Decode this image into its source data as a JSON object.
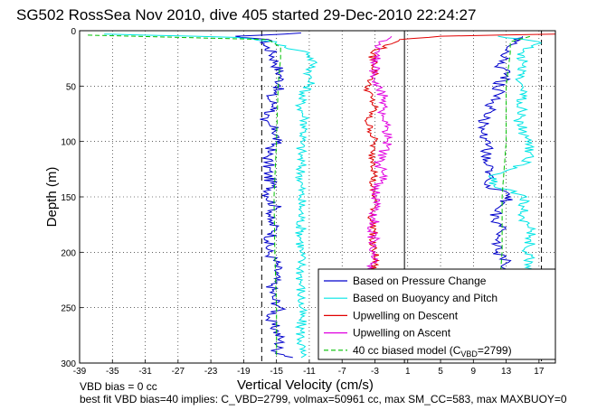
{
  "chart_data": {
    "type": "line",
    "title": "SG502 RossSea Nov 2010, dive 405 started 29-Dec-2010 22:24:27",
    "xlabel": "Vertical Velocity (cm/s)",
    "ylabel": "Depth (m)",
    "xlim": [
      -39,
      19
    ],
    "ylim": [
      300,
      0
    ],
    "y_reversed": true,
    "grid": true,
    "xticks": [
      -39,
      -35,
      -31,
      -27,
      -23,
      -19,
      -15,
      -11,
      -7,
      -3,
      1,
      5,
      9,
      13,
      17
    ],
    "yticks": [
      0,
      50,
      100,
      150,
      200,
      250,
      300
    ],
    "legend_position": "bottom-right",
    "legend": [
      {
        "label": "Based on Pressure Change",
        "color": "#0000cc",
        "style": "solid"
      },
      {
        "label": "Based on Buoyancy and Pitch",
        "color": "#00e5e5",
        "style": "solid"
      },
      {
        "label": "Upwelling on Descent",
        "color": "#e00000",
        "style": "solid"
      },
      {
        "label": "Upwelling on Ascent",
        "color": "#e000e0",
        "style": "solid"
      },
      {
        "label": "40 cc biased model (C",
        "sub": "VBD",
        "suffix": "=2799)",
        "color": "#00c000",
        "style": "dashed"
      }
    ],
    "reference_lines": [
      {
        "x": -16.8,
        "color": "#000000",
        "style": "dashed"
      },
      {
        "x": 0.6,
        "color": "#000000",
        "style": "solid"
      },
      {
        "x": 17.3,
        "color": "#000000",
        "style": "dashed"
      }
    ],
    "series": [
      {
        "name": "Based on Pressure Change",
        "color": "#0000cc",
        "descent": {
          "depth": [
            2,
            5,
            8,
            12,
            20,
            30,
            40,
            50,
            60,
            70,
            80,
            90,
            100,
            110,
            120,
            130,
            140,
            150,
            160,
            170,
            180,
            190,
            200,
            210,
            220,
            230,
            240,
            250,
            260,
            270,
            280,
            290,
            295
          ],
          "velocity": [
            -12,
            -20,
            -16,
            -16.5,
            -15.5,
            -15,
            -14.5,
            -14.5,
            -16,
            -15,
            -17,
            -15,
            -15,
            -16,
            -16,
            -16,
            -15.5,
            -16,
            -15,
            -16,
            -15,
            -16,
            -16,
            -15,
            -15,
            -15.5,
            -15.5,
            -14.5,
            -16,
            -15,
            -14.5,
            -15,
            -13
          ]
        },
        "ascent": {
          "depth": [
            296,
            290,
            280,
            270,
            260,
            250,
            240,
            230,
            220,
            210,
            200,
            190,
            180,
            170,
            160,
            150,
            140,
            130,
            120,
            110,
            100,
            90,
            80,
            70,
            60,
            50,
            40,
            30,
            20,
            10,
            5
          ],
          "velocity": [
            9,
            11.5,
            12,
            12,
            12.5,
            12,
            12,
            12.5,
            12,
            13,
            12,
            12,
            12.5,
            11.5,
            12,
            13.5,
            11,
            11,
            10.5,
            10.5,
            11,
            10,
            10.5,
            11,
            12,
            12,
            13,
            12,
            13,
            14,
            15
          ]
        }
      },
      {
        "name": "Based on Buoyancy and Pitch",
        "color": "#00e5e5",
        "descent": {
          "depth": [
            3,
            6,
            10,
            15,
            20,
            30,
            40,
            50,
            60,
            70,
            80,
            90,
            100,
            110,
            120,
            130,
            140,
            150,
            160,
            170,
            180,
            190,
            200,
            210,
            220,
            230,
            240,
            250,
            260,
            270,
            280,
            290,
            295
          ],
          "velocity": [
            -36,
            -20,
            -15,
            -14,
            -11,
            -10.5,
            -11,
            -11,
            -12,
            -12,
            -11.5,
            -11.5,
            -12,
            -12,
            -12,
            -12,
            -12,
            -12,
            -12,
            -12,
            -12,
            -12,
            -12,
            -12,
            -12,
            -12,
            -12,
            -12,
            -12,
            -12,
            -12,
            -12,
            -12
          ]
        },
        "ascent": {
          "depth": [
            296,
            290,
            280,
            270,
            260,
            250,
            240,
            230,
            220,
            210,
            200,
            190,
            180,
            170,
            160,
            150,
            140,
            130,
            120,
            110,
            100,
            90,
            80,
            70,
            60,
            50,
            40,
            30,
            20,
            10,
            5
          ],
          "velocity": [
            12,
            16,
            16,
            16,
            16,
            16,
            16,
            16,
            16,
            16,
            15.5,
            16,
            16,
            15,
            15,
            15.5,
            11.5,
            11.5,
            15.5,
            16,
            15.5,
            15,
            14.5,
            15,
            15,
            15,
            14.5,
            15,
            15,
            17,
            12
          ]
        }
      },
      {
        "name": "Upwelling on Descent",
        "color": "#e00000",
        "depth": [
          3,
          5,
          8,
          12,
          20,
          30,
          40,
          50,
          60,
          70,
          80,
          90,
          100,
          110,
          120,
          130,
          140,
          150,
          160,
          170,
          180,
          190,
          200,
          210,
          220,
          230,
          240,
          250,
          260,
          270,
          280,
          290
        ],
        "velocity": [
          19,
          5,
          0,
          -1,
          -3.5,
          -3,
          -3,
          -4,
          -3.5,
          -3,
          -4,
          -3.5,
          -3,
          -3.5,
          -3,
          -3,
          -3.5,
          -3,
          -3,
          -3.5,
          -3,
          -3.5,
          -3,
          -3,
          -3.5,
          -3,
          -3.5,
          -3,
          -3,
          -3,
          -3.5,
          -3.5
        ]
      },
      {
        "name": "Upwelling on Ascent",
        "color": "#e000e0",
        "depth": [
          294,
          290,
          280,
          270,
          260,
          250,
          240,
          230,
          220,
          210,
          200,
          190,
          180,
          170,
          160,
          150,
          140,
          130,
          120,
          110,
          100,
          90,
          80,
          70,
          60,
          50,
          40,
          30,
          20,
          10,
          5
        ],
        "velocity": [
          -4,
          -3,
          -3.5,
          -3,
          -3,
          -3,
          -3.5,
          -3,
          -3,
          -3.5,
          -3,
          -3,
          -3.5,
          -3,
          -3,
          -3,
          -2.5,
          -2,
          -2.5,
          -2,
          -1.5,
          -1.5,
          -2,
          -2,
          -2,
          -2.5,
          -3,
          -3,
          -3,
          -2.5,
          -1
        ]
      },
      {
        "name": "40 cc biased model",
        "color": "#00c000",
        "descent": {
          "depth": [
            4,
            8,
            15,
            25,
            50,
            100,
            150,
            200,
            250,
            295
          ],
          "velocity": [
            -38,
            -16,
            -14.5,
            -14.5,
            -14.8,
            -15,
            -15.3,
            -15.2,
            -15,
            -15
          ]
        },
        "ascent": {
          "depth": [
            295,
            250,
            200,
            150,
            100,
            50,
            20,
            10,
            5
          ],
          "velocity": [
            11.5,
            12,
            12.5,
            12.5,
            13,
            13,
            13.5,
            13.5,
            16
          ]
        }
      }
    ]
  },
  "notes": {
    "vbd_bias": "VBD bias = 0 cc",
    "best_fit": "best fit VBD bias=40 implies: C_VBD=2799, volmax=50961 cc, max SM_CC=583, max MAXBUOY=0"
  }
}
